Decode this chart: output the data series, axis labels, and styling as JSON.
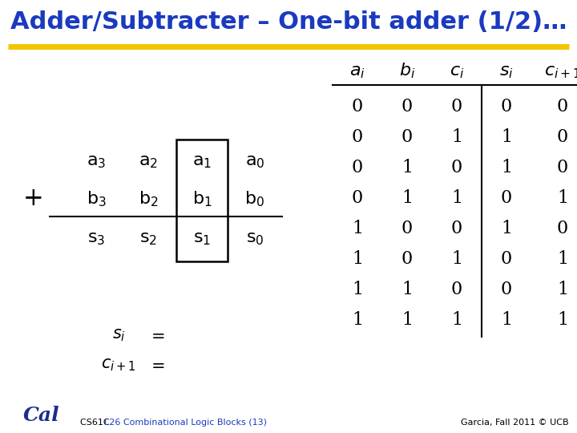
{
  "title": "Adder/Subtracter – One-bit adder (1/2)…",
  "title_color": "#1a3abf",
  "bg_color": "#ffffff",
  "gold_line_color": "#f5c400",
  "footer_right": "Garcia, Fall 2011 © UCB",
  "footer_cs_color": "#000000",
  "footer_l26_color": "#1a3abf",
  "truth_table": {
    "rows": [
      [
        0,
        0,
        0,
        0,
        0
      ],
      [
        0,
        0,
        1,
        1,
        0
      ],
      [
        0,
        1,
        0,
        1,
        0
      ],
      [
        0,
        1,
        1,
        0,
        1
      ],
      [
        1,
        0,
        0,
        1,
        0
      ],
      [
        1,
        0,
        1,
        0,
        1
      ],
      [
        1,
        1,
        0,
        0,
        1
      ],
      [
        1,
        1,
        1,
        1,
        1
      ]
    ]
  }
}
